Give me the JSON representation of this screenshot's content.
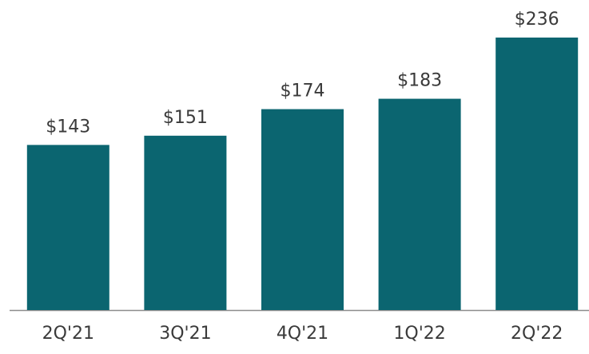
{
  "chart_data": {
    "type": "bar",
    "categories": [
      "2Q'21",
      "3Q'21",
      "4Q'21",
      "1Q'22",
      "2Q'22"
    ],
    "values": [
      143,
      151,
      174,
      183,
      236
    ],
    "value_labels": [
      "$143",
      "$151",
      "$174",
      "$183",
      "$236"
    ],
    "color": "#0b6570"
  }
}
